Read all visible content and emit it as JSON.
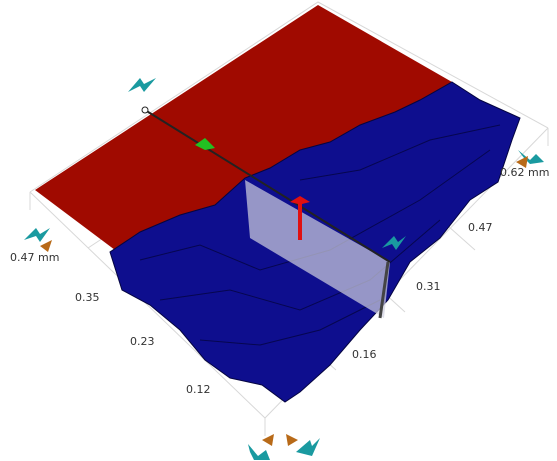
{
  "axes": {
    "left": [
      "0.47 mm",
      "0.35",
      "0.23",
      "0.12"
    ],
    "right": [
      "0.62 mm",
      "0.47",
      "0.31",
      "0.16"
    ]
  }
}
